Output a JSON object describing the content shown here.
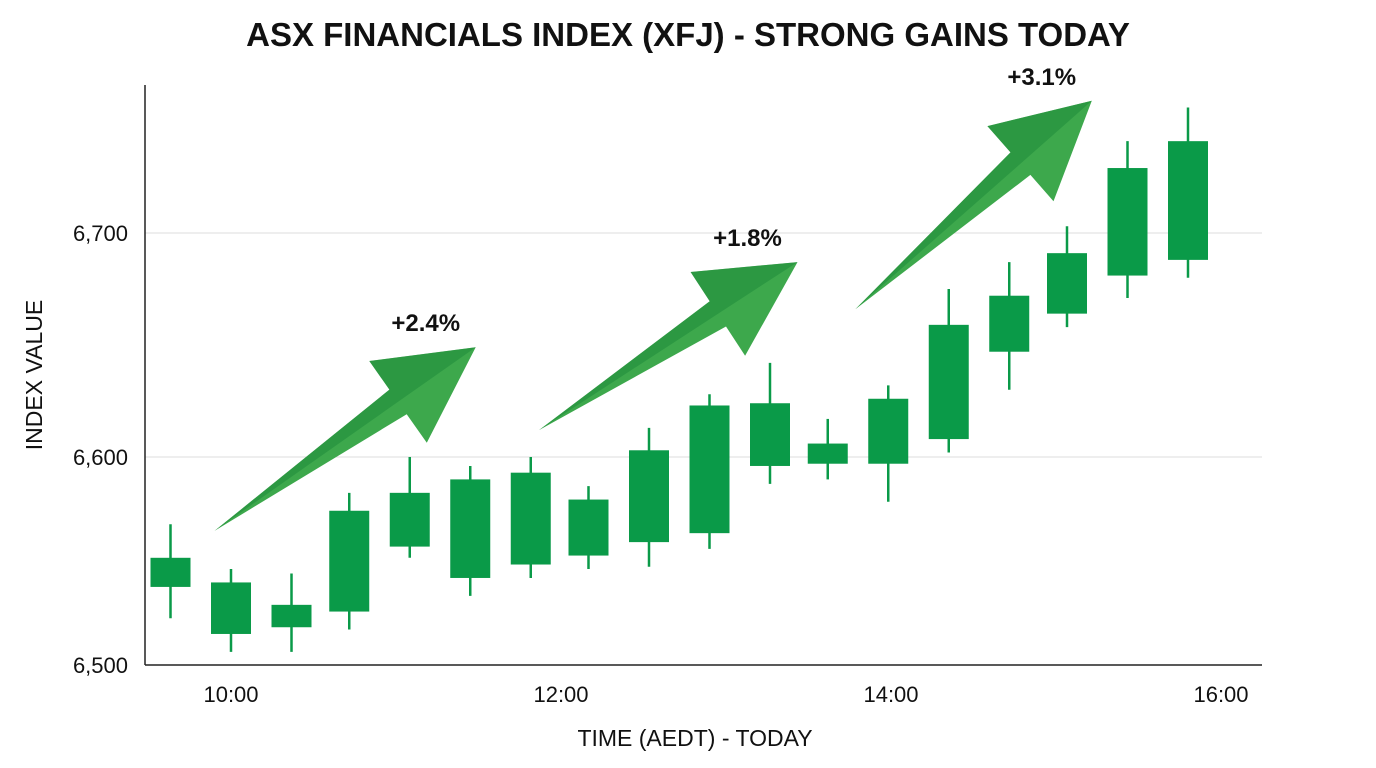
{
  "chart_data": {
    "type": "candlestick",
    "title": "ASX FINANCIALS INDEX (XFJ) - STRONG GAINS TODAY",
    "xlabel": "TIME (AEDT) - TODAY",
    "ylabel": "INDEX VALUE",
    "ylim": [
      6507,
      6766
    ],
    "xlim": [
      "09:30",
      "16:10"
    ],
    "yticks": [
      6500,
      6600,
      6700
    ],
    "ytick_labels": [
      "6,500",
      "6,600",
      "6,700"
    ],
    "xticks": [
      "10:00",
      "12:00",
      "14:00",
      "16:00"
    ],
    "grid": "horizontal",
    "colors": {
      "candle": "#0a9a48",
      "arrow": "#3da84c",
      "arrow_dark": "#1f8a3a",
      "gridline": "#dddddd"
    },
    "candles": [
      {
        "time": "09:38",
        "open": 6542,
        "close": 6555,
        "high": 6570,
        "low": 6528
      },
      {
        "time": "10:00",
        "open": 6521,
        "close": 6544,
        "high": 6550,
        "low": 6513
      },
      {
        "time": "10:22",
        "open": 6524,
        "close": 6534,
        "high": 6548,
        "low": 6513
      },
      {
        "time": "10:43",
        "open": 6531,
        "close": 6576,
        "high": 6584,
        "low": 6523
      },
      {
        "time": "11:05",
        "open": 6560,
        "close": 6584,
        "high": 6600,
        "low": 6555
      },
      {
        "time": "11:27",
        "open": 6546,
        "close": 6590,
        "high": 6596,
        "low": 6538
      },
      {
        "time": "11:49",
        "open": 6552,
        "close": 6593,
        "high": 6600,
        "low": 6546
      },
      {
        "time": "12:10",
        "open": 6556,
        "close": 6581,
        "high": 6587,
        "low": 6550
      },
      {
        "time": "12:32",
        "open": 6562,
        "close": 6603,
        "high": 6613,
        "low": 6551
      },
      {
        "time": "12:54",
        "open": 6566,
        "close": 6623,
        "high": 6628,
        "low": 6559
      },
      {
        "time": "13:16",
        "open": 6596,
        "close": 6624,
        "high": 6642,
        "low": 6588
      },
      {
        "time": "13:37",
        "open": 6597,
        "close": 6606,
        "high": 6617,
        "low": 6590
      },
      {
        "time": "13:59",
        "open": 6597,
        "close": 6626,
        "high": 6632,
        "low": 6580
      },
      {
        "time": "14:21",
        "open": 6608,
        "close": 6659,
        "high": 6675,
        "low": 6602
      },
      {
        "time": "14:43",
        "open": 6647,
        "close": 6672,
        "high": 6687,
        "low": 6630
      },
      {
        "time": "15:04",
        "open": 6664,
        "close": 6691,
        "high": 6703,
        "low": 6658
      },
      {
        "time": "15:26",
        "open": 6681,
        "close": 6729,
        "high": 6741,
        "low": 6671
      },
      {
        "time": "15:48",
        "open": 6688,
        "close": 6741,
        "high": 6756,
        "low": 6680
      }
    ],
    "annotations": [
      {
        "label": "+2.4%",
        "from": {
          "time": "09:54",
          "value": 6567
        },
        "to": {
          "time": "11:29",
          "value": 6649
        }
      },
      {
        "label": "+1.8%",
        "from": {
          "time": "11:52",
          "value": 6612
        },
        "to": {
          "time": "13:26",
          "value": 6687
        }
      },
      {
        "label": "+3.1%",
        "from": {
          "time": "13:47",
          "value": 6666
        },
        "to": {
          "time": "15:13",
          "value": 6759
        }
      }
    ]
  }
}
